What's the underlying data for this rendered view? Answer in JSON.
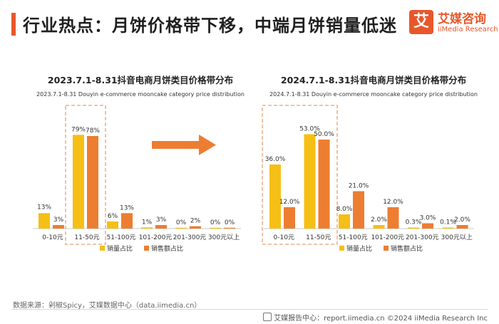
{
  "page": {
    "title": "行业热点：月饼价格带下移，中端月饼销量低迷",
    "logo_mark": "艾",
    "logo_cn": "艾媒咨询",
    "logo_en": "iiMedia Research",
    "source": "数据来源：剁椒Spicy，艾媒数据中心（data.iimedia.cn）",
    "footer_right": "艾媒报告中心：report.iimedia.cn    ©2024  iiMedia Research  Inc"
  },
  "colors": {
    "volume": "#f5bf16",
    "sales": "#ed7d31",
    "accent": "#e8572a",
    "highlight_box": "#e8a070",
    "arrow": "#ed7d31"
  },
  "chart_data": [
    {
      "type": "bar",
      "title": "2023.7.1-8.31抖音电商月饼类目价格带分布",
      "subtitle": "2023.7.1-8.31 Douyin e-commerce mooncake category price distribution",
      "categories": [
        "0-10元",
        "11-50元",
        "51-100元",
        "101-200元",
        "201-300元",
        "300元以上"
      ],
      "series": [
        {
          "name": "销量占比",
          "values": [
            13,
            79,
            6,
            1,
            0,
            0
          ],
          "labels": [
            "13%",
            "79%",
            "6%",
            "1%",
            "0%",
            "0%"
          ]
        },
        {
          "name": "销售额占比",
          "values": [
            3,
            78,
            13,
            3,
            2,
            0
          ],
          "labels": [
            "3%",
            "78%",
            "13%",
            "3%",
            "2%",
            "0%"
          ]
        }
      ],
      "ylim": [
        0,
        90
      ],
      "highlight_category": "11-50元",
      "legend": "bottom"
    },
    {
      "type": "bar",
      "title": "2024.7.1-8.31抖音电商月饼类目价格带分布",
      "subtitle": "2024.7.1-8.31 Douyin e-commerce mooncake category price distribution",
      "categories": [
        "0-10元",
        "11-50元",
        "51-100元",
        "101-200元",
        "201-300元",
        "300元以上"
      ],
      "series": [
        {
          "name": "销量占比",
          "values": [
            36.0,
            53.0,
            8.0,
            2.0,
            0.3,
            0.1
          ],
          "labels": [
            "36.0%",
            "53.0%",
            "8.0%",
            "2.0%",
            "0.3%",
            "0.1%"
          ]
        },
        {
          "name": "销售额占比",
          "values": [
            12.0,
            50.0,
            21.0,
            12.0,
            3.0,
            2.0
          ],
          "labels": [
            "12.0%",
            "50.0%",
            "21.0%",
            "12.0%",
            "3.0%",
            "2.0%"
          ]
        }
      ],
      "ylim": [
        0,
        60
      ],
      "highlight_categories": [
        "0-10元",
        "11-50元"
      ],
      "legend": "bottom"
    }
  ]
}
